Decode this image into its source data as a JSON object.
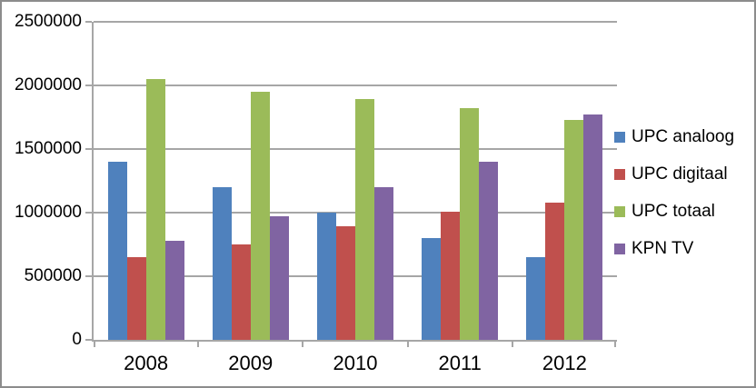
{
  "chart_data": {
    "type": "bar",
    "title": "",
    "xlabel": "",
    "ylabel": "",
    "categories": [
      "2008",
      "2009",
      "2010",
      "2011",
      "2012"
    ],
    "series": [
      {
        "name": "UPC analoog",
        "color": "#4F81BD",
        "values": [
          1400000,
          1200000,
          1000000,
          800000,
          650000
        ]
      },
      {
        "name": "UPC digitaal",
        "color": "#C0504D",
        "values": [
          650000,
          750000,
          890000,
          1010000,
          1080000
        ]
      },
      {
        "name": "UPC totaal",
        "color": "#9BBB59",
        "values": [
          2050000,
          1950000,
          1890000,
          1820000,
          1730000
        ]
      },
      {
        "name": "KPN TV",
        "color": "#8064A2",
        "values": [
          780000,
          970000,
          1200000,
          1400000,
          1770000
        ]
      }
    ],
    "ylim": [
      0,
      2500000
    ],
    "ytick_values": [
      0,
      500000,
      1000000,
      1500000,
      2000000,
      2500000
    ],
    "ytick_labels": [
      "0",
      "500000",
      "1000000",
      "1500000",
      "2000000",
      "2500000"
    ],
    "grid": true,
    "legend_position": "right",
    "colors": {
      "gridline": "#A6A6A6",
      "axis": "#A6A6A6",
      "frame_border": "#8C8C8C",
      "background": "#FFFFFF",
      "text": "#000000"
    }
  }
}
